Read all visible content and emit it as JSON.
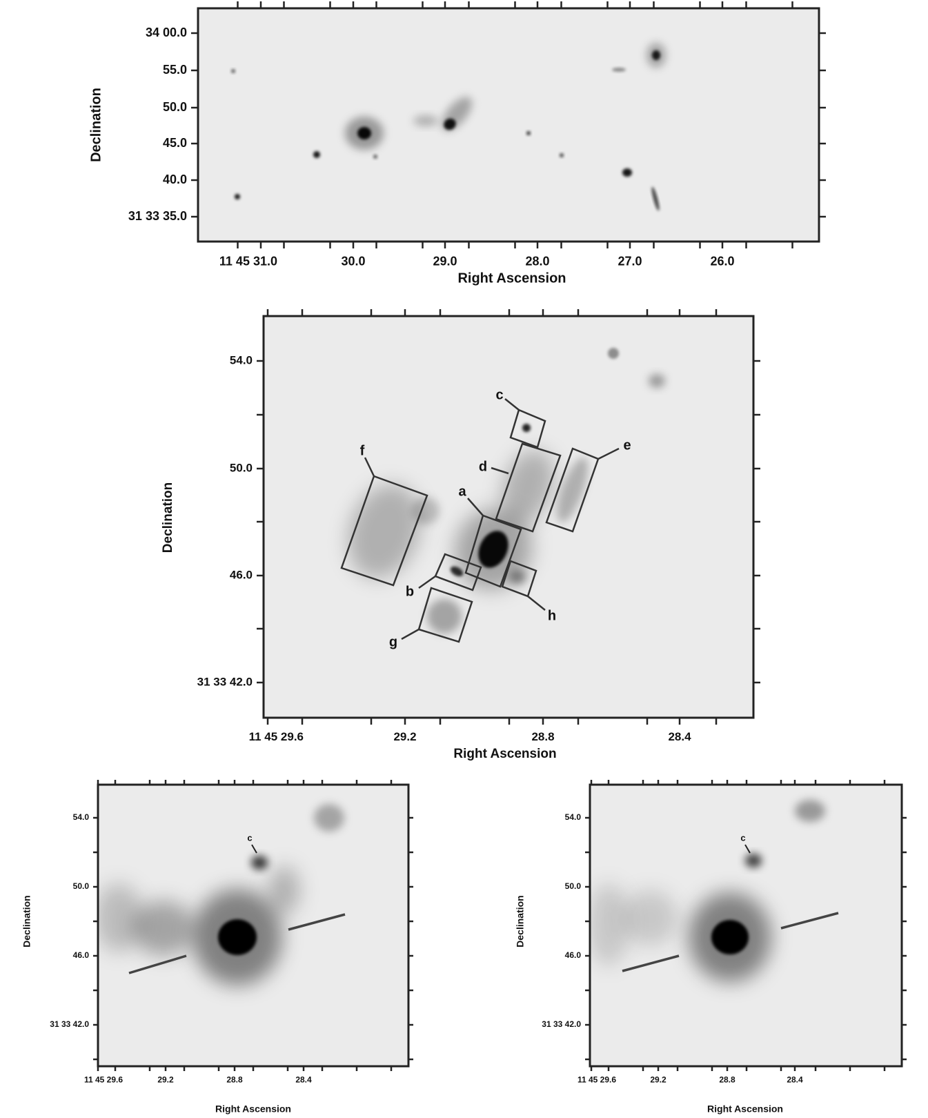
{
  "panels": [
    {
      "y_label": "Declination",
      "x_label": "Right Ascension",
      "yticks": [
        "34 00.0",
        "55.0",
        "50.0",
        "45.0",
        "40.0",
        "31 33 35.0"
      ],
      "xticks": [
        "11 45 31.0",
        "30.0",
        "29.0",
        "28.0",
        "27.0",
        "26.0"
      ]
    },
    {
      "y_label": "Declination",
      "x_label": "Right Ascension",
      "yticks": [
        "54.0",
        "50.0",
        "46.0",
        "31 33 42.0"
      ],
      "xticks": [
        "11 45 29.6",
        "29.2",
        "28.8",
        "28.4"
      ],
      "regions": [
        "a",
        "b",
        "c",
        "d",
        "e",
        "f",
        "g",
        "h"
      ]
    },
    {
      "y_label": "Declination",
      "x_label": "Right Ascension",
      "yticks": [
        "54.0",
        "50.0",
        "46.0",
        "31 33 42.0"
      ],
      "xticks": [
        "11 45 29.6",
        "29.2",
        "28.8",
        "28.4"
      ],
      "annotation": "c"
    },
    {
      "y_label": "Declination",
      "x_label": "Right Ascension",
      "yticks": [
        "54.0",
        "50.0",
        "46.0",
        "31 33 42.0"
      ],
      "xticks": [
        "11 45 29.6",
        "29.2",
        "28.8",
        "28.4"
      ],
      "annotation": "c"
    }
  ]
}
